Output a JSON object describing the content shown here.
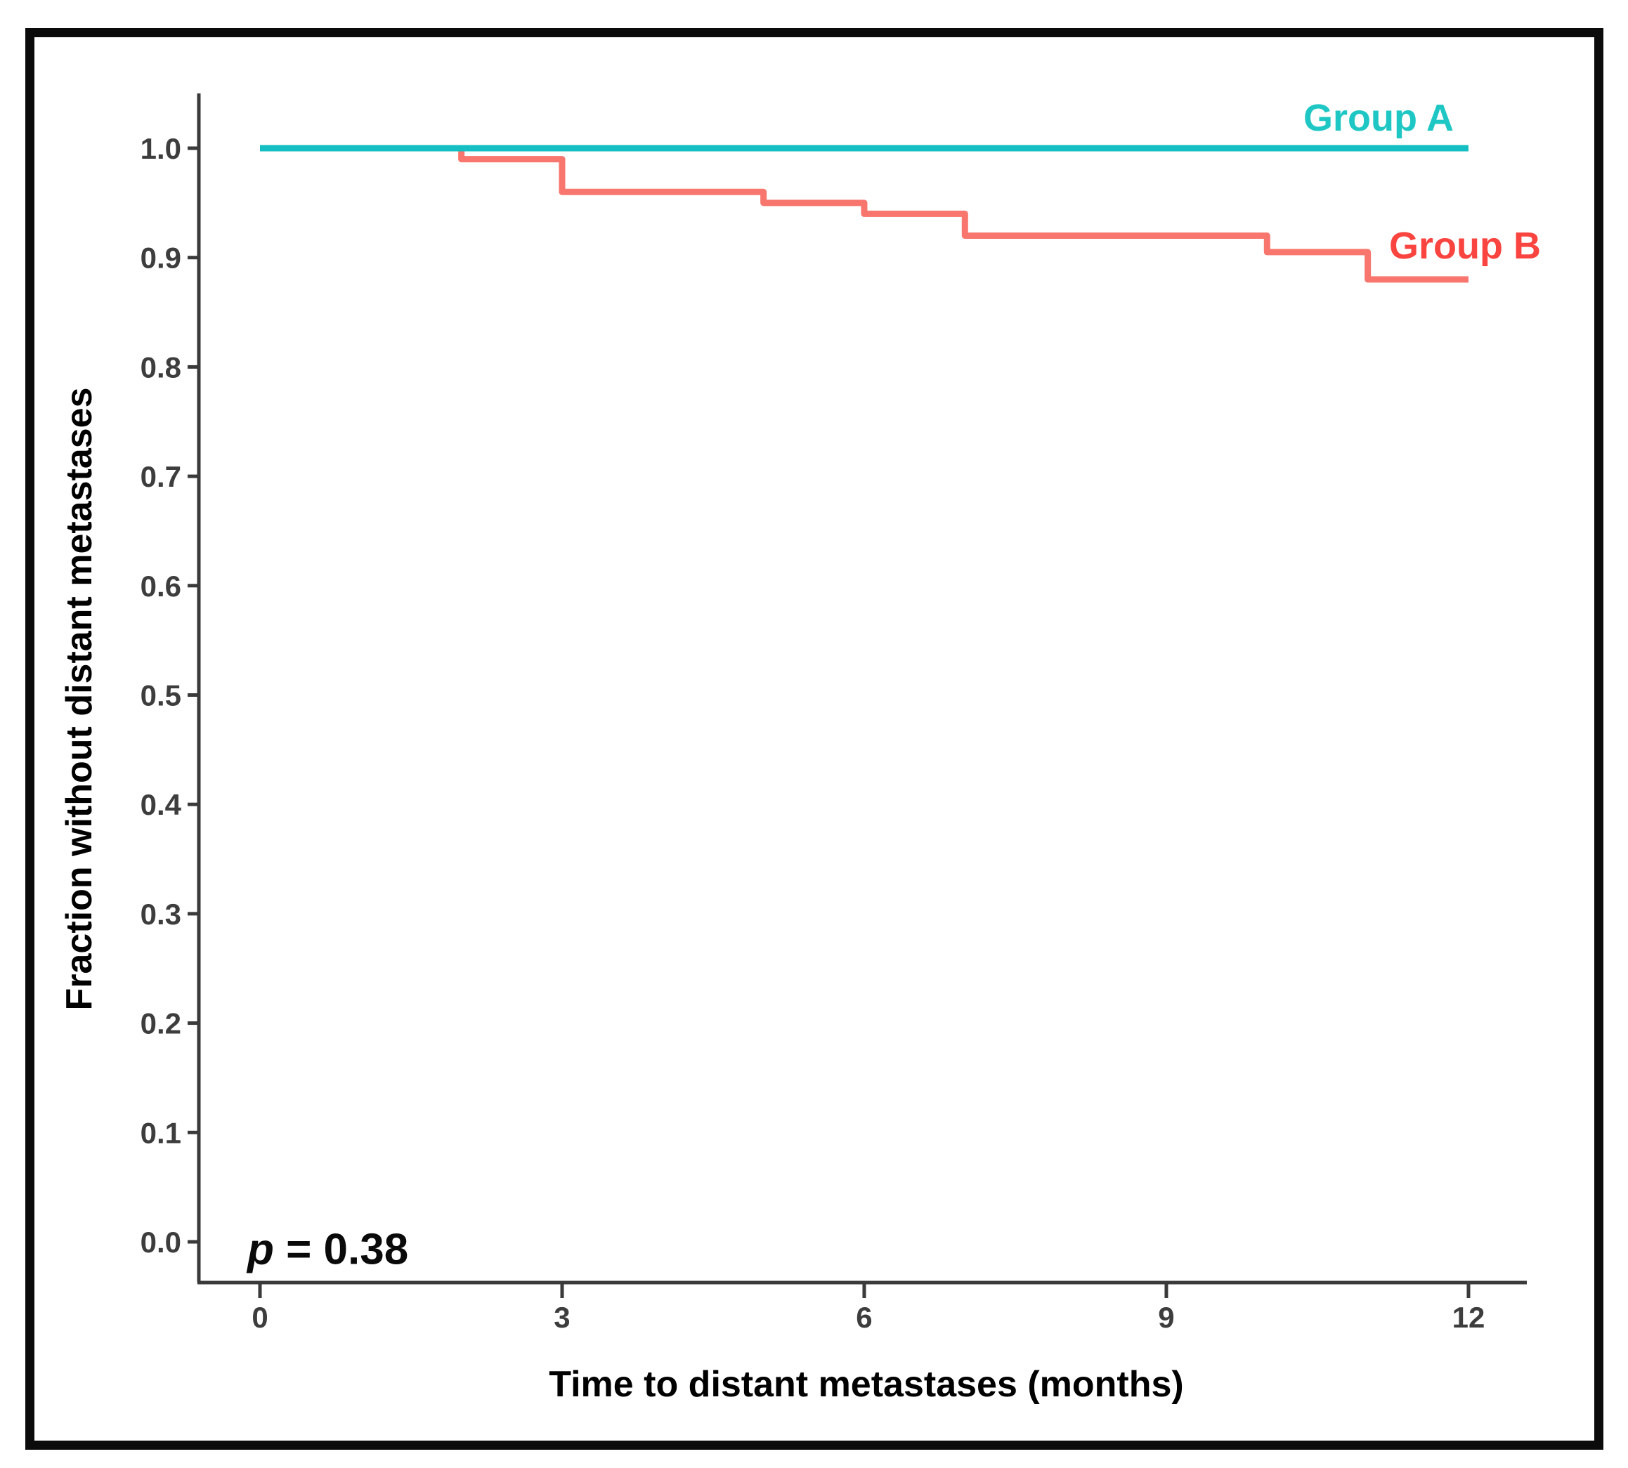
{
  "labels": {
    "group_a": "Group A",
    "group_b": "Group B",
    "p_symbol": "p",
    "p_rest": " = 0.38"
  },
  "colors": {
    "group_a_line": "#15bec2",
    "group_a_label": "#1fc7c4",
    "group_b_line": "#f8766d",
    "group_b_label": "#f9443f",
    "axis": "#3a3a3a",
    "tick_label": "#3d3d3d",
    "frame": "#0b0b0b",
    "background": "#ffffff"
  },
  "chart_data": {
    "type": "line",
    "subtype": "kaplan_meier_step",
    "title": "",
    "xlabel": "Time to distant metastases (months)",
    "ylabel": "Fraction without distant metastases",
    "xlim": [
      0,
      12
    ],
    "ylim": [
      0.0,
      1.05
    ],
    "grid": false,
    "legend_position": "inline labels right of curve ends",
    "p_value_annotation": "p = 0.38",
    "x_ticks": [
      {
        "value": 0,
        "label": "0"
      },
      {
        "value": 3,
        "label": "3"
      },
      {
        "value": 6,
        "label": "6"
      },
      {
        "value": 9,
        "label": "9"
      },
      {
        "value": 12,
        "label": "12"
      }
    ],
    "y_ticks": [
      {
        "value": 1.0,
        "label": "1.0"
      },
      {
        "value": 0.9,
        "label": "0.9"
      },
      {
        "value": 0.8,
        "label": "0.8"
      },
      {
        "value": 0.7,
        "label": "0.7"
      },
      {
        "value": 0.6,
        "label": "0.6"
      },
      {
        "value": 0.5,
        "label": "0.5"
      },
      {
        "value": 0.4,
        "label": "0.4"
      },
      {
        "value": 0.3,
        "label": "0.3"
      },
      {
        "value": 0.2,
        "label": "0.2"
      },
      {
        "value": 0.1,
        "label": "0.1"
      },
      {
        "value": 0.0,
        "label": "0.0"
      }
    ],
    "series": [
      {
        "name": "Group B",
        "color": "#f8766d",
        "label_color": "#f9443f",
        "points": [
          {
            "t": 0,
            "s": 1.0
          },
          {
            "t": 2,
            "s": 0.99
          },
          {
            "t": 3,
            "s": 0.96
          },
          {
            "t": 5,
            "s": 0.95
          },
          {
            "t": 6,
            "s": 0.94
          },
          {
            "t": 7,
            "s": 0.92
          },
          {
            "t": 10,
            "s": 0.905
          },
          {
            "t": 11,
            "s": 0.88
          },
          {
            "t": 12,
            "s": 0.88
          }
        ]
      },
      {
        "name": "Group A",
        "color": "#15bec2",
        "label_color": "#1fc7c4",
        "points": [
          {
            "t": 0,
            "s": 1.0
          },
          {
            "t": 12,
            "s": 1.0
          }
        ]
      }
    ]
  }
}
